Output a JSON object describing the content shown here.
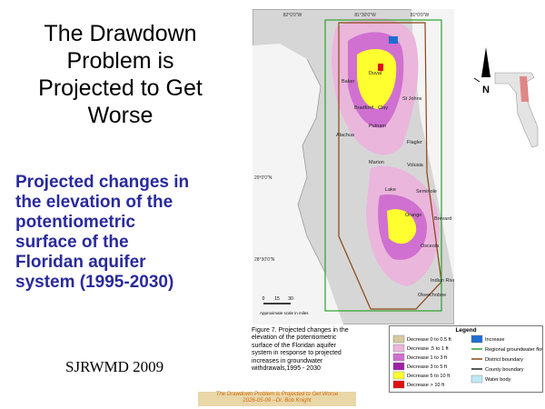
{
  "title": [
    "The Drawdown",
    "Problem is",
    "Projected to Get",
    "Worse"
  ],
  "subtitle": [
    "Projected changes in",
    "the elevation of the",
    "potentiometric",
    "surface of the",
    "Floridan aquifer",
    "system (1995-2030)"
  ],
  "source": "SJRWMD 2009",
  "map": {
    "longitudes": [
      "82°0'0\"W",
      "81°30'0\"W",
      "81°0'0\"W"
    ],
    "latitudes": [
      "29°0'0\"N",
      "28°30'0\"N"
    ],
    "counties": [
      "Baker",
      "Duval",
      "Bradford",
      "Clay",
      "St Johns",
      "Putnam",
      "Alachua",
      "Flagler",
      "Marion",
      "Volusia",
      "Lake",
      "Seminole",
      "Orange",
      "Brevard",
      "Osceola",
      "Indian River",
      "Okeechobee"
    ],
    "scale_ticks": [
      "0",
      "15",
      "30"
    ],
    "scale_label": "Approximate scale in miles",
    "north_label": "N"
  },
  "caption": [
    "Figure 7.  Projected changes in the",
    "elevation of the potentiometric",
    "surface of the Floridan aquifer",
    "system in response to projected",
    "increases in groundwater",
    "withdrawals,1995 - 2030"
  ],
  "legend": {
    "title": "Legend",
    "items": [
      {
        "label": "Decrease 0 to 0.5 ft",
        "color": "#d8c9a0"
      },
      {
        "label": "Decrease .5 to 1 ft",
        "color": "#eab6dc"
      },
      {
        "label": "Decrease 1 to 3 ft",
        "color": "#d070d0"
      },
      {
        "label": "Decrease 3 to 5 ft",
        "color": "#a020a8"
      },
      {
        "label": "Decrease 5 to 10 ft",
        "color": "#ffff30"
      },
      {
        "label": "Decrease > 10 ft",
        "color": "#e01010"
      },
      {
        "label": "Increase",
        "color": "#1e6fd0"
      },
      {
        "label": "Regional groundwater flow model boundary",
        "color": "#2ca02c"
      },
      {
        "label": "District boundary",
        "color": "#8b4513"
      },
      {
        "label": "County boundary",
        "color": "#222222"
      },
      {
        "label": "Water body",
        "color": "#bfe8f5"
      }
    ]
  },
  "footer": [
    "The Drawdown Problem is Projected to Get Worse",
    "2026-05-09 --Dr. Bob Knight"
  ]
}
